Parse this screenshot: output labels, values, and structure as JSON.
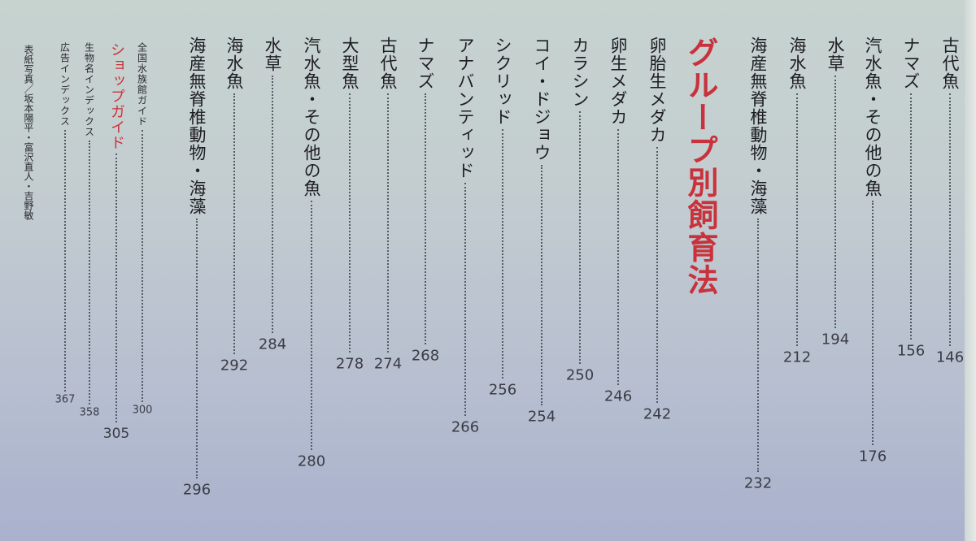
{
  "toc_continued": [
    {
      "title": "古代魚",
      "page": "146"
    },
    {
      "title": "ナマズ",
      "page": "156"
    },
    {
      "title": "汽水魚・その他の魚",
      "page": "176"
    },
    {
      "title": "水草",
      "page": "194"
    },
    {
      "title": "海水魚",
      "page": "212"
    },
    {
      "title": "海産無脊椎動物・海藻",
      "page": "232"
    }
  ],
  "section_heading": "グループ別飼育法",
  "group_entries": [
    {
      "title": "卵胎生メダカ",
      "page": "242"
    },
    {
      "title": "卵生メダカ",
      "page": "246"
    },
    {
      "title": "カラシン",
      "page": "250"
    },
    {
      "title": "コイ・ドジョウ",
      "page": "254"
    },
    {
      "title": "シクリッド",
      "page": "256"
    },
    {
      "title": "アナバンティッド",
      "page": "266"
    },
    {
      "title": "ナマズ",
      "page": "268"
    },
    {
      "title": "古代魚",
      "page": "274"
    },
    {
      "title": "大型魚",
      "page": "278"
    },
    {
      "title": "汽水魚・その他の魚",
      "page": "280"
    },
    {
      "title": "水草",
      "page": "284"
    },
    {
      "title": "海水魚",
      "page": "292"
    },
    {
      "title": "海産無脊椎動物・海藻",
      "page": "296"
    }
  ],
  "back_matter": [
    {
      "title": "全国水族館ガイド",
      "page": "300"
    },
    {
      "title": "ショップガイド",
      "page": "305"
    },
    {
      "title": "生物名インデックス",
      "page": "358"
    },
    {
      "title": "広告インデックス",
      "page": "367"
    }
  ],
  "credit": "表紙写真／坂本陽平・富沢直人・吉野敏"
}
